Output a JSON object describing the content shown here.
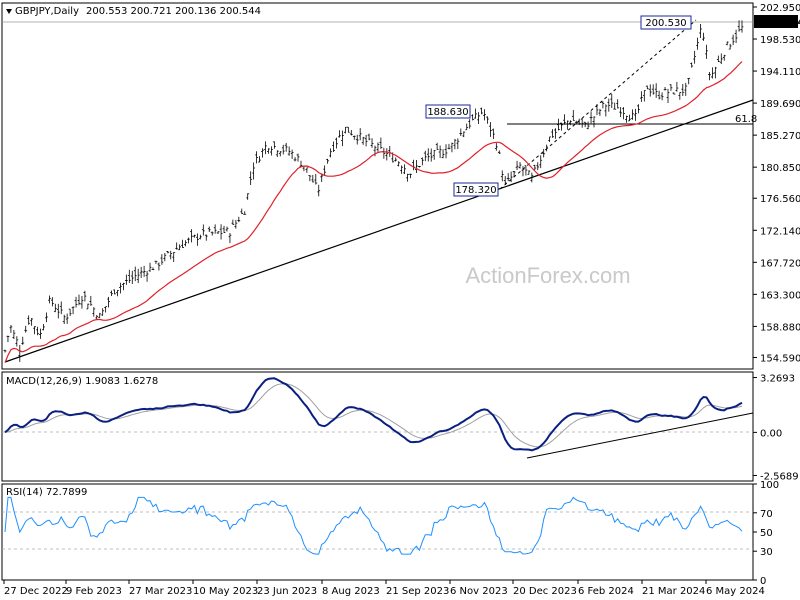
{
  "header": {
    "symbol": "GBPJPY,Daily",
    "ohlc": "200.553 200.721 200.136 200.544"
  },
  "watermark": "ActionForex.com",
  "chart_data": [
    {
      "type": "candlestick",
      "title": "GBPJPY,Daily",
      "ylim": [
        153.0,
        203.5
      ],
      "y_ticks": [
        "202.950",
        "198.530",
        "194.110",
        "189.690",
        "185.270",
        "180.850",
        "176.560",
        "172.140",
        "167.720",
        "163.300",
        "158.880",
        "154.590"
      ],
      "last_price": "200.544",
      "series": [
        {
          "name": "price",
          "color": "#000000"
        },
        {
          "name": "moving average",
          "color": "#e0202a"
        }
      ],
      "annotations": [
        "200.530",
        "188.630",
        "178.320",
        "61.8"
      ]
    },
    {
      "type": "line",
      "title": "MACD(12,26,9) 1.9083 1.6278",
      "ylim": [
        -2.9,
        3.6
      ],
      "y_ticks": [
        "3.2693",
        "0.00",
        "-2.5689"
      ],
      "series": [
        {
          "name": "MACD",
          "color": "#0a1f82"
        },
        {
          "name": "signal",
          "color": "#a0a0a0"
        }
      ]
    },
    {
      "type": "line",
      "title": "RSI(14) 72.7899",
      "ylim": [
        0,
        100
      ],
      "y_ticks": [
        "100",
        "70",
        "50",
        "30",
        "0"
      ],
      "series": [
        {
          "name": "RSI",
          "color": "#1e90ff"
        }
      ]
    }
  ],
  "x_ticks": [
    "27 Dec 2022",
    "9 Feb 2023",
    "27 Mar 2023",
    "10 May 2023",
    "23 Jun 2023",
    "8 Aug 2023",
    "21 Sep 2023",
    "6 Nov 2023",
    "20 Dec 2023",
    "6 Feb 2024",
    "21 Mar 2024",
    "6 May 2024"
  ]
}
